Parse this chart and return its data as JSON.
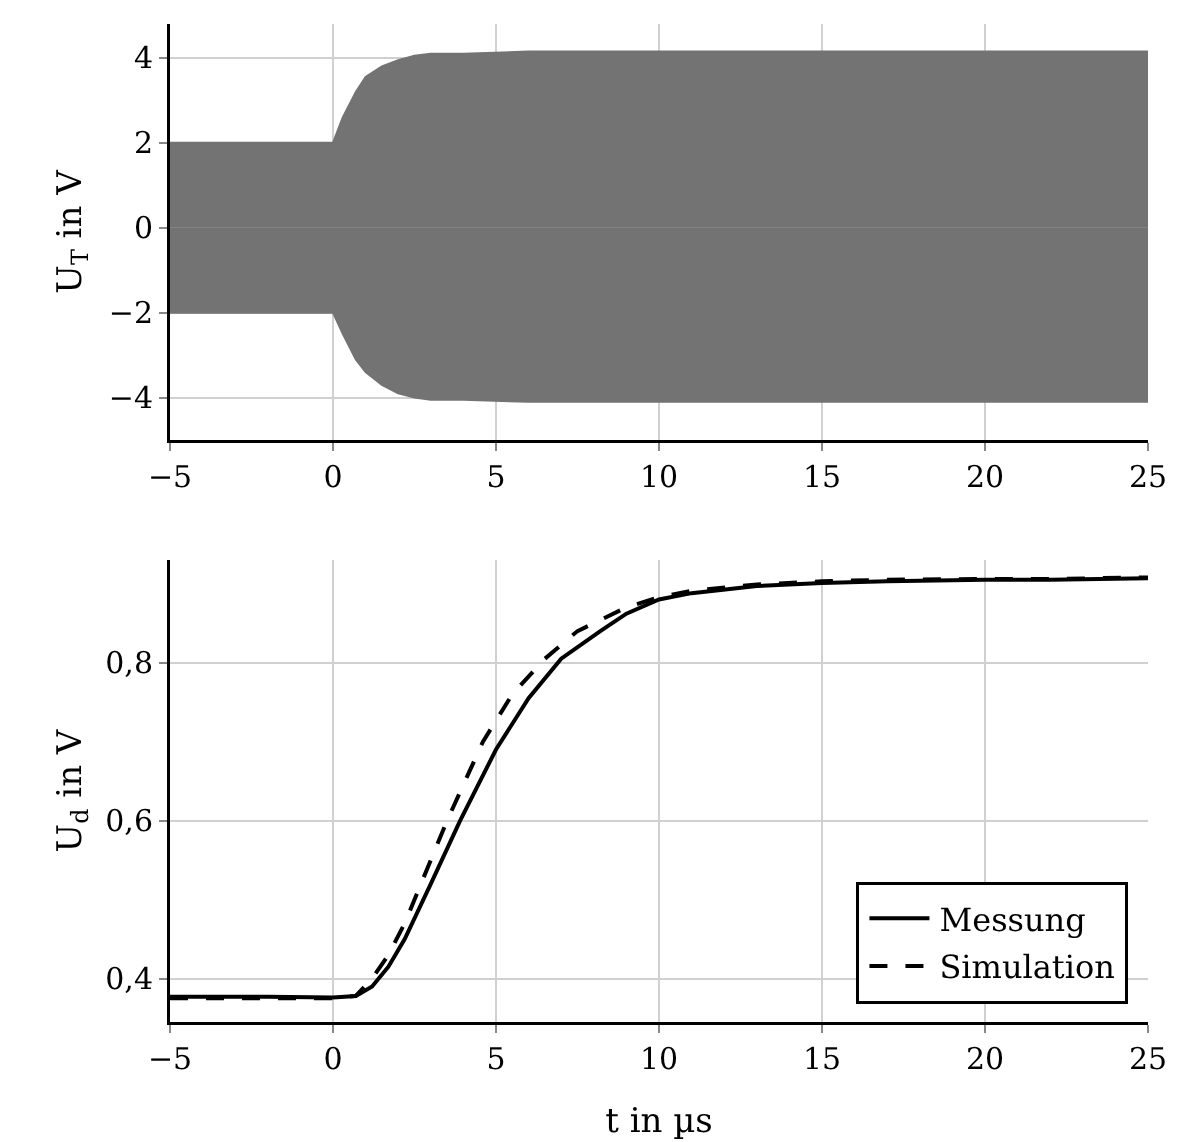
{
  "chart_data": [
    {
      "type": "area",
      "ylabel": "U$_{T}$ in V",
      "x": [
        -5,
        -2,
        0,
        0.3,
        0.7,
        1,
        1.5,
        2,
        2.5,
        3,
        4,
        6,
        10,
        15,
        20,
        25
      ],
      "xlim": [
        -5,
        25
      ],
      "xticks": [
        {
          "value": -5,
          "label": "−5"
        },
        0,
        5,
        10,
        15,
        20,
        25
      ],
      "ylim": [
        -5,
        4.8
      ],
      "yticks": [
        {
          "value": -4,
          "label": "−4"
        },
        {
          "value": -2,
          "label": "−2"
        },
        0,
        2,
        4
      ],
      "grid": true,
      "series": [
        {
          "color": "#737373",
          "values": [
            2,
            2,
            2,
            2.6,
            3.2,
            3.55,
            3.8,
            3.95,
            4.05,
            4.1,
            4.1,
            4.15,
            4.15,
            4.15,
            4.15,
            4.15
          ]
        },
        {
          "color": "#737373",
          "values": [
            -2,
            -2,
            -2,
            -2.5,
            -3.1,
            -3.4,
            -3.7,
            -3.9,
            -4,
            -4.05,
            -4.05,
            -4.1,
            -4.1,
            -4.1,
            -4.1,
            -4.1
          ]
        }
      ]
    },
    {
      "type": "line",
      "xlabel": "t in µs",
      "ylabel": "U$_{d}$ in V",
      "xlim": [
        -5,
        25
      ],
      "xticks": [
        {
          "value": -5,
          "label": "−5"
        },
        0,
        5,
        10,
        15,
        20,
        25
      ],
      "ylim": [
        0.345,
        0.93
      ],
      "yticks": [
        {
          "value": 0.4,
          "label": "0,4"
        },
        {
          "value": 0.6,
          "label": "0,6"
        },
        {
          "value": 0.8,
          "label": "0,8"
        }
      ],
      "grid": true,
      "legend": "bottom right",
      "series": [
        {
          "name": "Messung",
          "color": "#000000",
          "line_style": "solid",
          "x": [
            -5,
            -2,
            0,
            0.7,
            1.2,
            1.7,
            2.2,
            3,
            3.9,
            5,
            6,
            7,
            8.2,
            9,
            10,
            11,
            13,
            15,
            17,
            20,
            22,
            25
          ],
          "values": [
            0.377,
            0.377,
            0.376,
            0.378,
            0.39,
            0.415,
            0.45,
            0.52,
            0.6,
            0.69,
            0.755,
            0.805,
            0.84,
            0.862,
            0.88,
            0.888,
            0.897,
            0.901,
            0.903,
            0.905,
            0.905,
            0.907
          ]
        },
        {
          "name": "Simulation",
          "color": "#000000",
          "line_style": "dashed",
          "x": [
            -5,
            -2,
            0,
            0.7,
            1.2,
            1.7,
            2.2,
            3,
            3.5,
            4.6,
            5.5,
            6.5,
            7.5,
            9,
            10,
            11,
            13,
            15,
            17,
            20,
            22,
            25
          ],
          "values": [
            0.375,
            0.375,
            0.375,
            0.378,
            0.4,
            0.43,
            0.47,
            0.55,
            0.6,
            0.7,
            0.76,
            0.805,
            0.84,
            0.87,
            0.883,
            0.891,
            0.899,
            0.903,
            0.905,
            0.906,
            0.906,
            0.908
          ]
        }
      ]
    }
  ]
}
